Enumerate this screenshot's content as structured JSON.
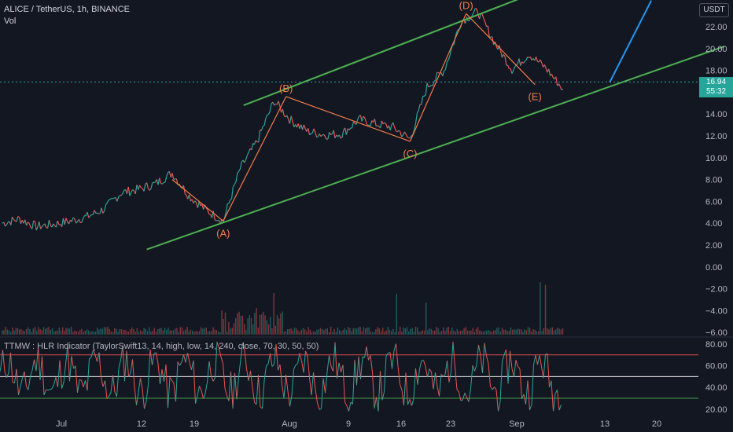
{
  "header": {
    "title": "ALICE / TetherUS, 1h, BINANCE",
    "vol_label": "Vol",
    "currency": "USDT",
    "indicator_label": "TTMW : HLR Indicator (TaylorSwift13, 14, high, low, 14, 240, close, 70, 30, 50, 50)"
  },
  "last_price": {
    "price": "16.94",
    "countdown": "55:32",
    "color": "#26a69a"
  },
  "colors": {
    "background": "#131722",
    "channel": "#4caf50",
    "wave": "#f57c4a",
    "projection": "#2196f3",
    "up": "#26a69a",
    "down": "#ef5350",
    "grid_text": "#b2b5be"
  },
  "chart_data": [
    {
      "type": "line",
      "name": "price",
      "ylim": [
        -6,
        23.5
      ],
      "y_ticks": [
        "22.00",
        "20.00",
        "18.00",
        "16.00",
        "14.00",
        "12.00",
        "10.00",
        "8.00",
        "6.00",
        "4.00",
        "2.00",
        "0.00",
        "−2.00",
        "−4.00",
        "−6.00"
      ],
      "x_ticks": [
        "Jul",
        "12",
        "19",
        "Aug",
        "9",
        "16",
        "23",
        "Sep",
        "13",
        "20"
      ],
      "x": [
        0,
        2,
        4,
        6,
        8,
        10,
        12,
        14,
        16,
        18,
        20,
        22,
        24,
        26,
        28,
        30,
        32,
        34,
        36,
        38,
        40,
        42,
        44,
        46,
        48,
        50,
        52,
        54,
        56,
        58,
        60,
        62,
        64,
        66
      ],
      "values": [
        4.0,
        4.4,
        3.7,
        3.9,
        4.2,
        4.6,
        5.3,
        6.8,
        7.1,
        7.6,
        8.6,
        6.5,
        5.2,
        4.2,
        9.0,
        11.5,
        15.2,
        13.4,
        12.4,
        12.1,
        12.2,
        13.5,
        13.1,
        12.8,
        11.7,
        16.5,
        18.0,
        22.5,
        23.4,
        20.5,
        18.1,
        19.5,
        18.2,
        16.3
      ],
      "wave_points": [
        {
          "label": "(A)",
          "x": 26.0,
          "y": 4.2
        },
        {
          "label": "(B)",
          "x": 33.4,
          "y": 15.6
        },
        {
          "label": "(C)",
          "x": 48.0,
          "y": 11.5
        },
        {
          "label": "(D)",
          "x": 54.6,
          "y": 23.2
        },
        {
          "label": "(E)",
          "x": 62.7,
          "y": 16.7
        }
      ],
      "wave_pre": [
        {
          "x": 20.0,
          "y": 8.0
        },
        {
          "x": 26.0,
          "y": 4.2
        }
      ],
      "channel_upper": [
        {
          "x": 28.4,
          "y": 14.8
        },
        {
          "x": 65.0,
          "y": 25.8
        }
      ],
      "channel_lower": [
        {
          "x": 17.0,
          "y": 1.6
        },
        {
          "x": 85.0,
          "y": 20.2
        }
      ],
      "projection": [
        {
          "x": 71.5,
          "y": 16.9
        },
        {
          "x": 76.4,
          "y": 24.4
        }
      ]
    },
    {
      "type": "line",
      "name": "TTMW : HLR Indicator",
      "ylim": [
        15,
        85
      ],
      "y_ticks": [
        "80.00",
        "60.00",
        "40.00",
        "20.00"
      ],
      "levels": [
        70,
        50,
        30
      ]
    }
  ]
}
